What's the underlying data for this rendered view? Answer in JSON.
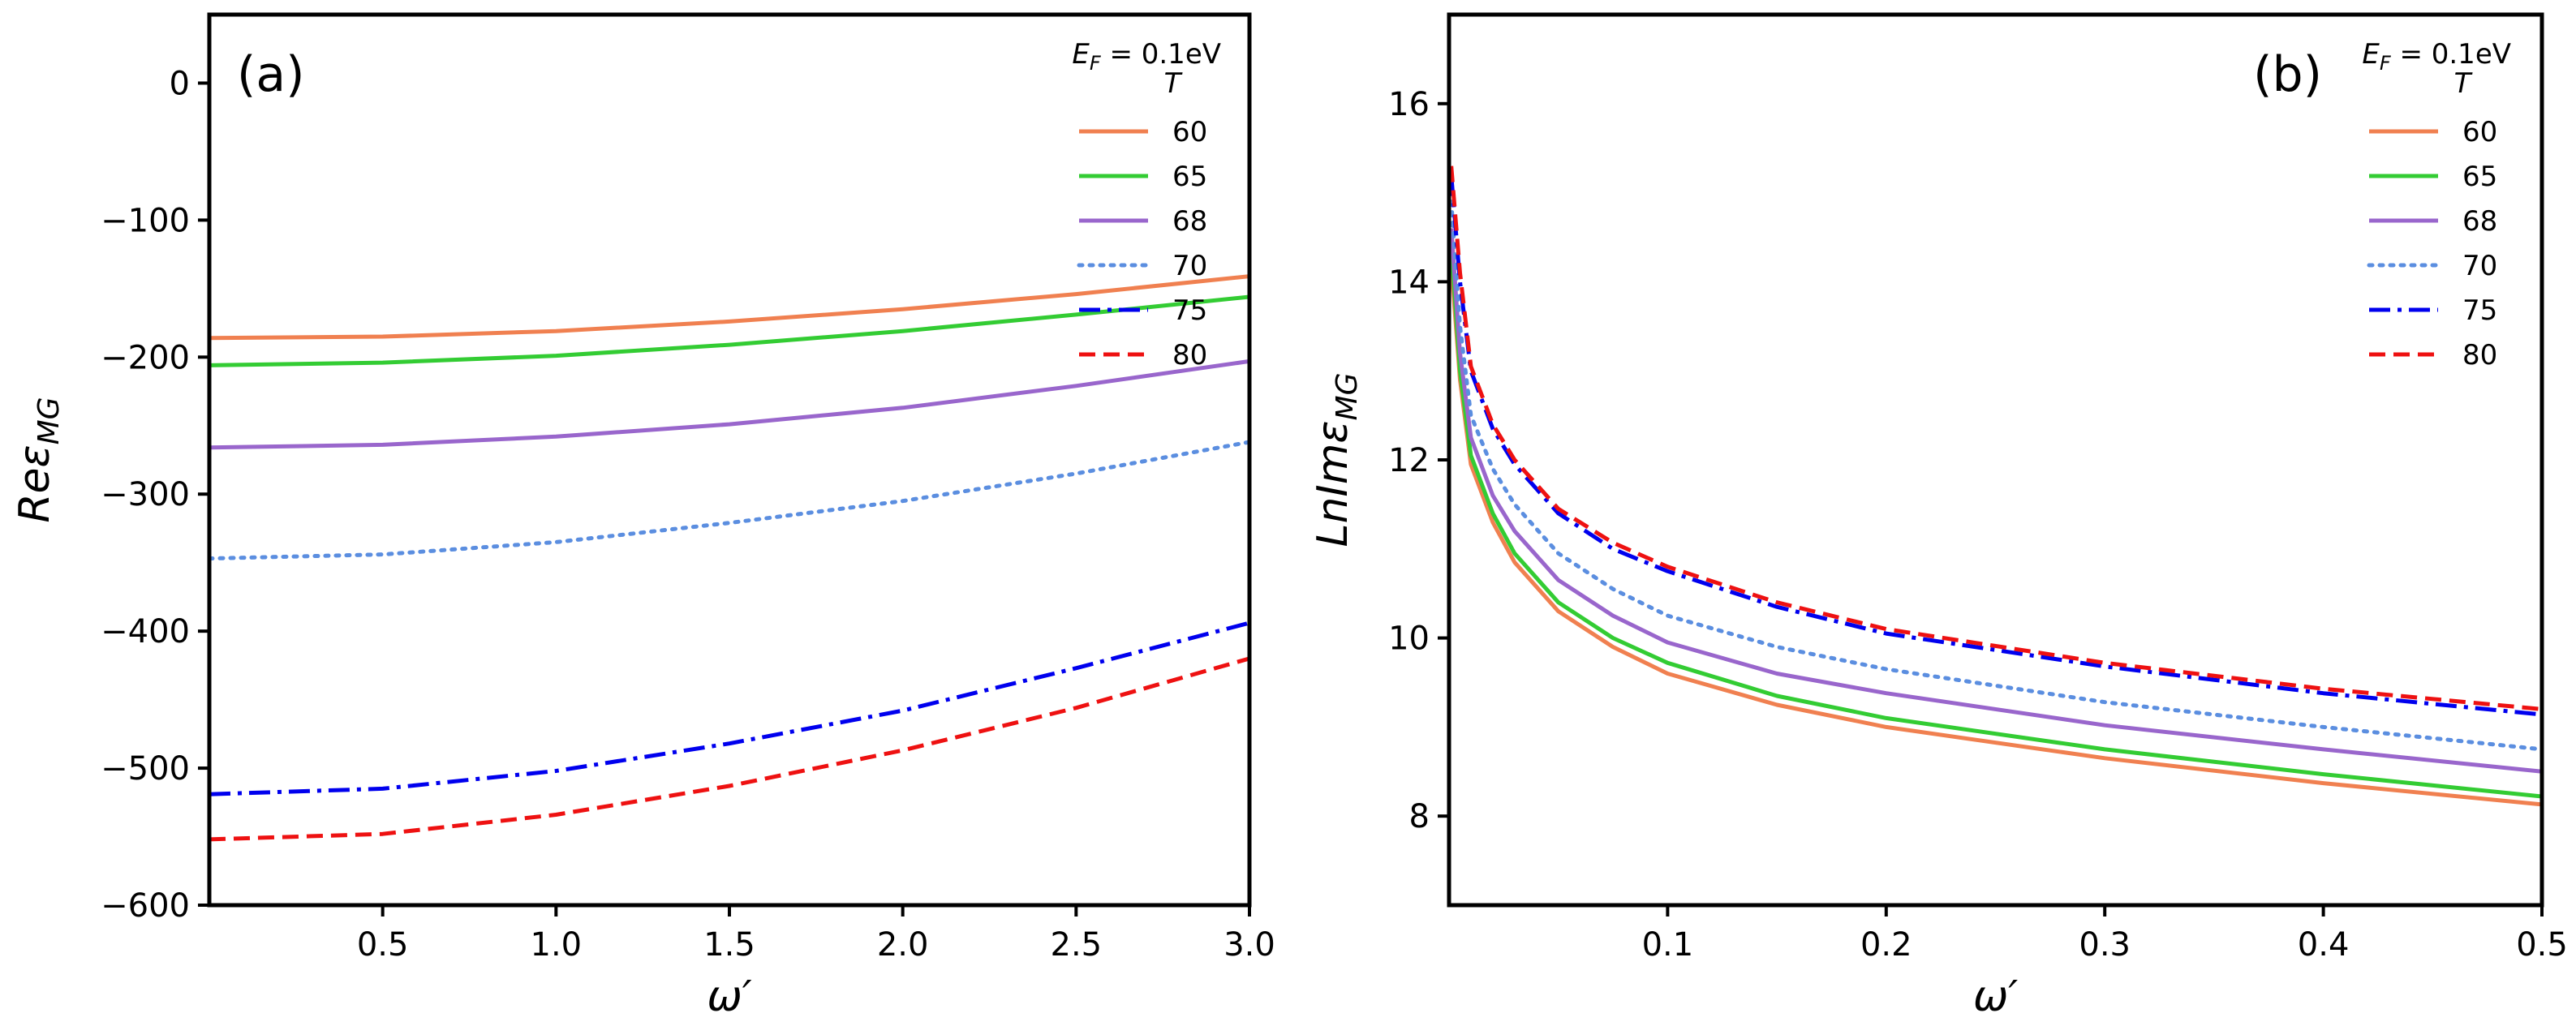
{
  "chart_data": [
    {
      "type": "line",
      "panel_label": "(a)",
      "xlabel": "ω′",
      "ylabel": "Reε",
      "ylabel_sub": "MG",
      "xlim": [
        0,
        3.0
      ],
      "ylim": [
        -600,
        50
      ],
      "xticks": [
        0.5,
        1.0,
        1.5,
        2.0,
        2.5,
        3.0
      ],
      "xtick_labels": [
        "0.5",
        "1.0",
        "1.5",
        "2.0",
        "2.5",
        "3.0"
      ],
      "yticks": [
        0,
        -100,
        -200,
        -300,
        -400,
        -500,
        -600
      ],
      "ytick_labels": [
        "0",
        "−100",
        "−200",
        "−300",
        "−400",
        "−500",
        "−600"
      ],
      "legend": {
        "title_main": "E",
        "title_sub": "F",
        "title_value": " = 0.1eV",
        "subtitle": "T",
        "position": "top-right"
      },
      "series": [
        {
          "name": "60",
          "color": "#f08050",
          "style": "solid",
          "x": [
            0.0,
            0.5,
            1.0,
            1.5,
            2.0,
            2.5,
            3.0
          ],
          "y": [
            -186,
            -185,
            -181,
            -174,
            -165,
            -154,
            -141
          ]
        },
        {
          "name": "65",
          "color": "#33cc33",
          "style": "solid",
          "x": [
            0.0,
            0.5,
            1.0,
            1.5,
            2.0,
            2.5,
            3.0
          ],
          "y": [
            -206,
            -204,
            -199,
            -191,
            -181,
            -169,
            -156
          ]
        },
        {
          "name": "68",
          "color": "#9966cc",
          "style": "solid",
          "x": [
            0.0,
            0.5,
            1.0,
            1.5,
            2.0,
            2.5,
            3.0
          ],
          "y": [
            -266,
            -264,
            -258,
            -249,
            -237,
            -221,
            -203
          ]
        },
        {
          "name": "70",
          "color": "#5b8ee0",
          "style": "dotted",
          "x": [
            0.0,
            0.5,
            1.0,
            1.5,
            2.0,
            2.5,
            3.0
          ],
          "y": [
            -347,
            -344,
            -335,
            -321,
            -305,
            -285,
            -262
          ]
        },
        {
          "name": "75",
          "color": "#0000ee",
          "style": "dashdot",
          "x": [
            0.0,
            0.5,
            1.0,
            1.5,
            2.0,
            2.5,
            3.0
          ],
          "y": [
            -519,
            -515,
            -502,
            -482,
            -458,
            -427,
            -394
          ]
        },
        {
          "name": "80",
          "color": "#ee1111",
          "style": "dashed",
          "x": [
            0.0,
            0.5,
            1.0,
            1.5,
            2.0,
            2.5,
            3.0
          ],
          "y": [
            -552,
            -548,
            -534,
            -513,
            -487,
            -456,
            -420
          ]
        }
      ]
    },
    {
      "type": "line",
      "panel_label": "(b)",
      "xlabel": "ω′",
      "ylabel": "LnImε",
      "ylabel_sub": "MG",
      "xlim": [
        0,
        0.5
      ],
      "ylim": [
        7,
        17
      ],
      "xticks": [
        0.1,
        0.2,
        0.3,
        0.4,
        0.5
      ],
      "xtick_labels": [
        "0.1",
        "0.2",
        "0.3",
        "0.4",
        "0.5"
      ],
      "yticks": [
        8,
        10,
        12,
        14,
        16
      ],
      "ytick_labels": [
        "8",
        "10",
        "12",
        "14",
        "16"
      ],
      "legend": {
        "title_main": "E",
        "title_sub": "F",
        "title_value": " = 0.1eV",
        "subtitle": "T",
        "position": "top-right"
      },
      "series": [
        {
          "name": "60",
          "color": "#f08050",
          "style": "solid",
          "x": [
            0.001,
            0.005,
            0.01,
            0.02,
            0.03,
            0.05,
            0.075,
            0.1,
            0.15,
            0.2,
            0.3,
            0.4,
            0.5
          ],
          "y": [
            14.2,
            12.9,
            11.95,
            11.3,
            10.85,
            10.3,
            9.9,
            9.6,
            9.25,
            9.0,
            8.65,
            8.37,
            8.13
          ]
        },
        {
          "name": "65",
          "color": "#33cc33",
          "style": "solid",
          "x": [
            0.001,
            0.005,
            0.01,
            0.02,
            0.03,
            0.05,
            0.075,
            0.1,
            0.15,
            0.2,
            0.3,
            0.4,
            0.5
          ],
          "y": [
            14.4,
            13.0,
            12.05,
            11.4,
            10.95,
            10.4,
            10.0,
            9.72,
            9.35,
            9.1,
            8.75,
            8.47,
            8.22
          ]
        },
        {
          "name": "68",
          "color": "#9966cc",
          "style": "solid",
          "x": [
            0.001,
            0.005,
            0.01,
            0.02,
            0.03,
            0.05,
            0.075,
            0.1,
            0.15,
            0.2,
            0.3,
            0.4,
            0.5
          ],
          "y": [
            14.6,
            13.2,
            12.25,
            11.6,
            11.2,
            10.65,
            10.25,
            9.95,
            9.6,
            9.38,
            9.02,
            8.75,
            8.5
          ]
        },
        {
          "name": "70",
          "color": "#5b8ee0",
          "style": "dotted",
          "x": [
            0.001,
            0.005,
            0.01,
            0.02,
            0.03,
            0.05,
            0.075,
            0.1,
            0.15,
            0.2,
            0.3,
            0.4,
            0.5
          ],
          "y": [
            14.9,
            13.5,
            12.5,
            11.9,
            11.5,
            10.95,
            10.55,
            10.25,
            9.9,
            9.65,
            9.28,
            9.0,
            8.75
          ]
        },
        {
          "name": "75",
          "color": "#0000ee",
          "style": "dashdot",
          "x": [
            0.001,
            0.005,
            0.01,
            0.02,
            0.03,
            0.05,
            0.075,
            0.1,
            0.15,
            0.2,
            0.3,
            0.4,
            0.5
          ],
          "y": [
            15.2,
            14.0,
            13.0,
            12.35,
            11.95,
            11.4,
            11.0,
            10.75,
            10.35,
            10.05,
            9.68,
            9.38,
            9.14
          ]
        },
        {
          "name": "80",
          "color": "#ee1111",
          "style": "dashed",
          "x": [
            0.001,
            0.005,
            0.01,
            0.02,
            0.03,
            0.05,
            0.075,
            0.1,
            0.15,
            0.2,
            0.3,
            0.4,
            0.5
          ],
          "y": [
            15.3,
            14.1,
            13.05,
            12.4,
            12.0,
            11.45,
            11.07,
            10.8,
            10.4,
            10.1,
            9.72,
            9.43,
            9.2
          ]
        }
      ]
    }
  ]
}
